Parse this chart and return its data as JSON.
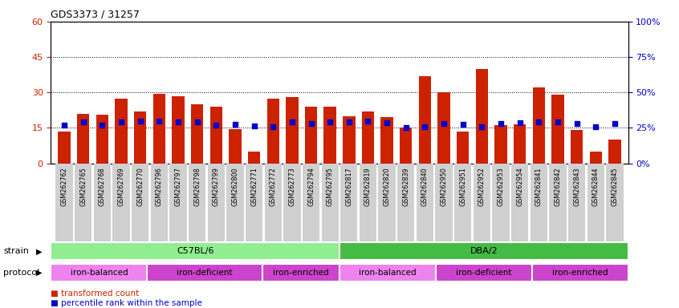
{
  "title": "GDS3373 / 31257",
  "samples": [
    "GSM262762",
    "GSM262765",
    "GSM262768",
    "GSM262769",
    "GSM262770",
    "GSM262796",
    "GSM262797",
    "GSM262798",
    "GSM262799",
    "GSM262800",
    "GSM262771",
    "GSM262772",
    "GSM262773",
    "GSM262794",
    "GSM262795",
    "GSM262817",
    "GSM262819",
    "GSM262820",
    "GSM262839",
    "GSM262840",
    "GSM262950",
    "GSM262951",
    "GSM262952",
    "GSM262953",
    "GSM262954",
    "GSM262841",
    "GSM262842",
    "GSM262843",
    "GSM262844",
    "GSM262845"
  ],
  "red_values": [
    13.5,
    21.0,
    20.5,
    27.5,
    22.0,
    29.5,
    28.5,
    25.0,
    24.0,
    14.5,
    5.0,
    27.5,
    28.0,
    24.0,
    24.0,
    20.0,
    22.0,
    19.5,
    15.0,
    37.0,
    30.0,
    13.5,
    40.0,
    16.0,
    16.5,
    32.0,
    29.0,
    14.0,
    5.0,
    10.0
  ],
  "blue_values_pct": [
    27.0,
    29.0,
    27.0,
    29.0,
    30.0,
    29.5,
    29.0,
    29.0,
    27.0,
    27.5,
    26.5,
    26.0,
    29.0,
    28.0,
    29.0,
    29.0,
    30.0,
    28.5,
    25.0,
    26.0,
    28.0,
    27.5,
    26.0,
    28.0,
    28.5,
    29.0,
    29.0,
    28.0,
    26.0,
    28.0
  ],
  "strain_groups": [
    {
      "label": "C57BL/6",
      "start": 0,
      "end": 15,
      "color": "#90EE90"
    },
    {
      "label": "DBA/2",
      "start": 15,
      "end": 30,
      "color": "#44BB44"
    }
  ],
  "protocol_groups": [
    {
      "label": "iron-balanced",
      "start": 0,
      "end": 5,
      "color": "#EE82EE"
    },
    {
      "label": "iron-deficient",
      "start": 5,
      "end": 11,
      "color": "#CC44CC"
    },
    {
      "label": "iron-enriched",
      "start": 11,
      "end": 15,
      "color": "#CC44CC"
    },
    {
      "label": "iron-balanced",
      "start": 15,
      "end": 20,
      "color": "#EE82EE"
    },
    {
      "label": "iron-deficient",
      "start": 20,
      "end": 25,
      "color": "#CC44CC"
    },
    {
      "label": "iron-enriched",
      "start": 25,
      "end": 30,
      "color": "#CC44CC"
    }
  ],
  "proto_colors": {
    "iron-balanced": "#EE82EE",
    "iron-deficient": "#CC44CC",
    "iron-enriched": "#CC44CC"
  },
  "ylim_left": [
    0,
    60
  ],
  "ylim_right": [
    0,
    100
  ],
  "yticks_left": [
    0,
    15,
    30,
    45,
    60
  ],
  "yticks_right": [
    0,
    25,
    50,
    75,
    100
  ],
  "bar_color": "#CC2200",
  "dot_color": "#0000CC",
  "tick_bg_color": "#D0D0D0",
  "legend_items": [
    {
      "label": "transformed count",
      "color": "#CC2200"
    },
    {
      "label": "percentile rank within the sample",
      "color": "#0000CC"
    }
  ]
}
